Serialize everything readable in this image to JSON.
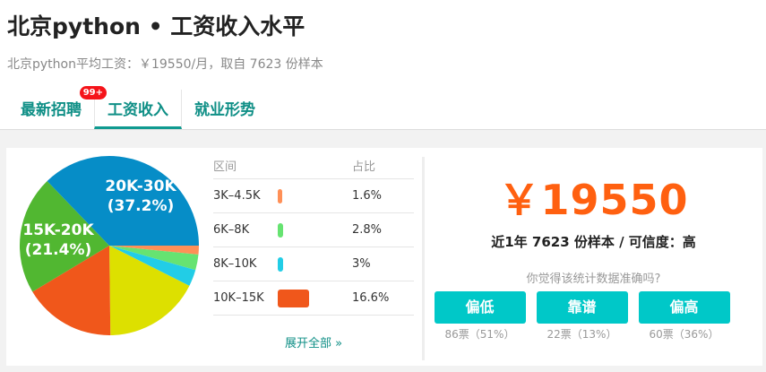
{
  "header": {
    "title": "北京python • 工资收入水平",
    "subtitle": "北京python平均工资：￥19550/月，取自 7623 份样本"
  },
  "tabs": [
    {
      "label": "最新招聘",
      "badge": "99+"
    },
    {
      "label": "工资收入",
      "active": true
    },
    {
      "label": "就业形势"
    }
  ],
  "table": {
    "col_range": "区间",
    "col_ratio": "占比",
    "rows": [
      {
        "range": "3K–4.5K",
        "ratio": "1.6%",
        "value": 1.6,
        "color": "#ff9057"
      },
      {
        "range": "6K–8K",
        "ratio": "2.8%",
        "value": 2.8,
        "color": "#66e371"
      },
      {
        "range": "8K–10K",
        "ratio": "3%",
        "value": 3,
        "color": "#22cde6"
      },
      {
        "range": "10K–15K",
        "ratio": "16.6%",
        "value": 16.6,
        "color": "#f0571b"
      }
    ],
    "more": "展开全部 »"
  },
  "summary": {
    "amount": "￥19550",
    "samples": "近1年 7623 份样本 / 可信度：高",
    "question": "你觉得该统计数据准确吗?"
  },
  "votes": [
    {
      "label": "偏低",
      "count": "86票（51%）"
    },
    {
      "label": "靠谱",
      "count": "22票（13%）"
    },
    {
      "label": "偏高",
      "count": "60票（36%）"
    }
  ],
  "chart_data": {
    "type": "pie",
    "start": "3 o'clock, clockwise",
    "slices": [
      {
        "label": "3K-4.5K",
        "value": 1.6,
        "color": "#ff9057"
      },
      {
        "label": "6K-8K",
        "value": 2.8,
        "color": "#66e371"
      },
      {
        "label": "8K-10K",
        "value": 3,
        "color": "#22cde6"
      },
      {
        "label": "",
        "value": 17.4,
        "color": "#dde000"
      },
      {
        "label": "10K-15K",
        "value": 16.6,
        "color": "#f0571b"
      },
      {
        "label": "15K-20K",
        "value": 21.4,
        "color": "#51b731",
        "data_label": "15K-20K",
        "data_label2": "(21.4%)"
      },
      {
        "label": "20K-30K",
        "value": 37.2,
        "color": "#068dc7",
        "data_label": "20K-30K",
        "data_label2": "(37.2%)"
      }
    ]
  }
}
